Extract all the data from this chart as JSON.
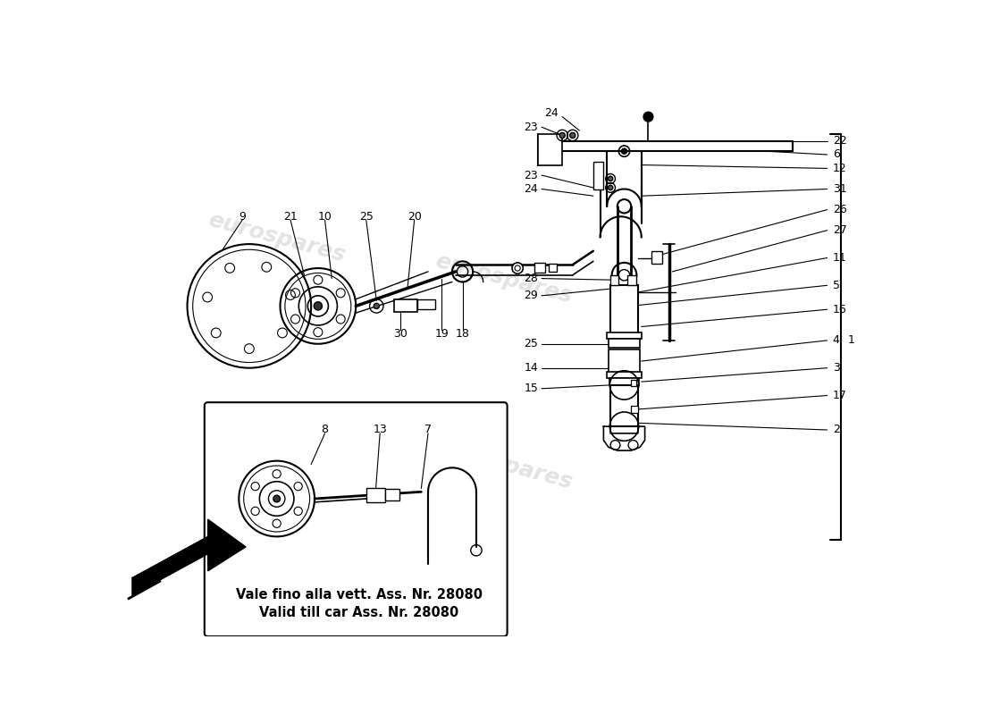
{
  "bg_color": "#ffffff",
  "watermark_text": "eurospares",
  "watermark_color": "#cccccc",
  "line_color": "#000000",
  "text_color": "#000000",
  "note_text_line1": "Vale fino alla vett. Ass. Nr. 28080",
  "note_text_line2": "Valid till car Ass. Nr. 28080",
  "note_fontsize": 10.5,
  "label_fontsize": 9,
  "callout_lw": 0.8
}
